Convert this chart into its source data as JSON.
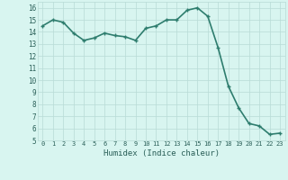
{
  "x": [
    0,
    1,
    2,
    3,
    4,
    5,
    6,
    7,
    8,
    9,
    10,
    11,
    12,
    13,
    14,
    15,
    16,
    17,
    18,
    19,
    20,
    21,
    22,
    23
  ],
  "y": [
    14.5,
    15.0,
    14.8,
    13.9,
    13.3,
    13.5,
    13.9,
    13.7,
    13.6,
    13.3,
    14.3,
    14.5,
    15.0,
    15.0,
    15.8,
    16.0,
    15.3,
    12.7,
    9.5,
    7.7,
    6.4,
    6.2,
    5.5,
    5.6
  ],
  "xlabel": "Humidex (Indice chaleur)",
  "line_color": "#2e7d6e",
  "marker": "+",
  "marker_size": 3,
  "bg_color": "#d8f5f0",
  "grid_color": "#b8dbd6",
  "xlim": [
    -0.5,
    23.5
  ],
  "ylim": [
    5,
    16.5
  ],
  "yticks": [
    5,
    6,
    7,
    8,
    9,
    10,
    11,
    12,
    13,
    14,
    15,
    16
  ],
  "xtick_labels": [
    "0",
    "1",
    "2",
    "3",
    "4",
    "5",
    "6",
    "7",
    "8",
    "9",
    "10",
    "11",
    "12",
    "13",
    "14",
    "15",
    "16",
    "17",
    "18",
    "19",
    "20",
    "21",
    "22",
    "23"
  ],
  "font_color": "#2a5f58",
  "linewidth": 1.2,
  "xlabel_fontsize": 6.5,
  "xtick_fontsize": 5.0,
  "ytick_fontsize": 5.5
}
